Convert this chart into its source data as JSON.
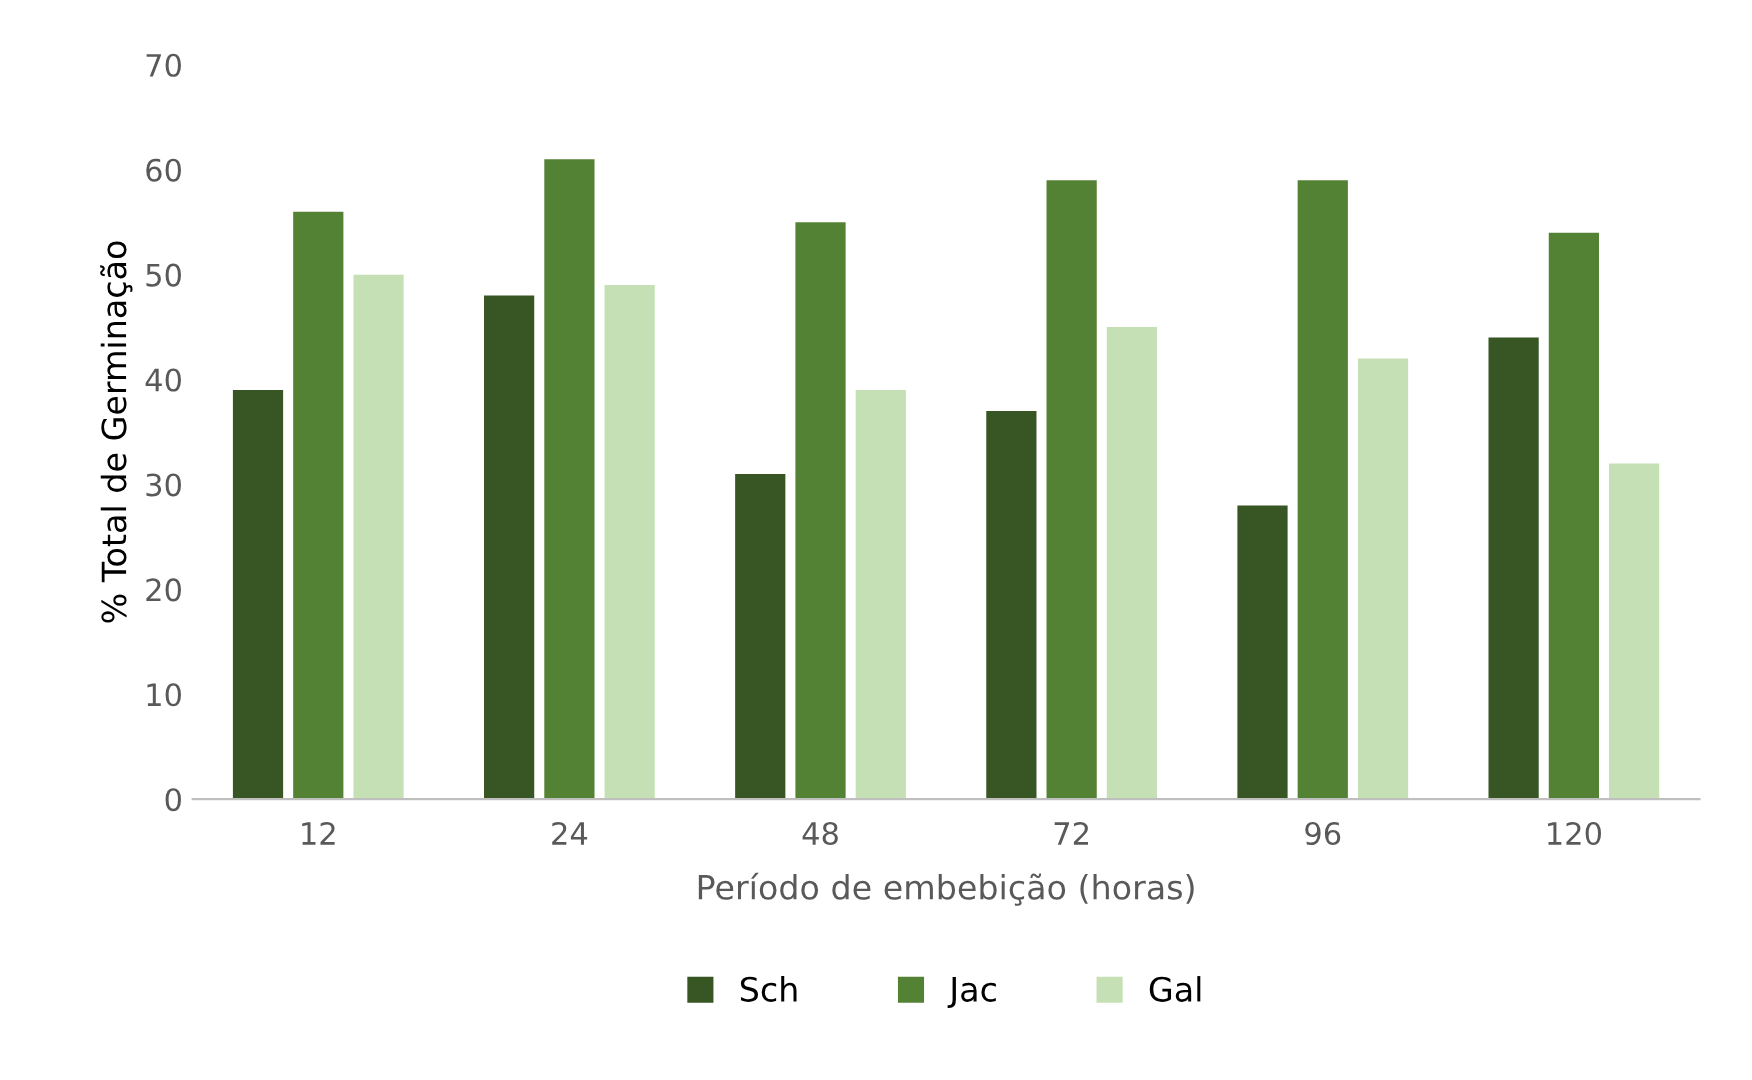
{
  "chart_data": {
    "type": "bar",
    "xlabel": "Período de embebição (horas)",
    "ylabel": "% Total de Germinação",
    "categories": [
      "12",
      "24",
      "48",
      "72",
      "96",
      "120"
    ],
    "series": [
      {
        "name": "Sch",
        "color": "#375623",
        "values": [
          39,
          48,
          31,
          37,
          28,
          44
        ]
      },
      {
        "name": "Jac",
        "color": "#548235",
        "values": [
          56,
          61,
          55,
          59,
          59,
          54
        ]
      },
      {
        "name": "Gal",
        "color": "#c5e0b4",
        "values": [
          50,
          49,
          39,
          45,
          42,
          32
        ]
      }
    ],
    "ylim": [
      0,
      70
    ],
    "yticks": [
      0,
      10,
      20,
      30,
      40,
      50,
      60,
      70
    ],
    "grid": false,
    "legend": "bottom"
  }
}
